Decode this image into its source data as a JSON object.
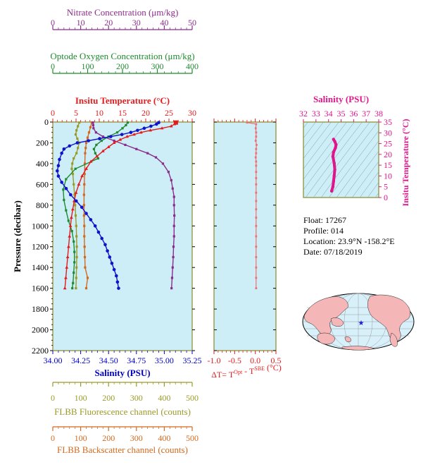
{
  "colors": {
    "nitrate": "#8b2c8b",
    "oxygen": "#1f8a2f",
    "temperature": "#e41a1c",
    "salinity_axis": "#0000cc",
    "salinity_line": "#1111cc",
    "fluorescence": "#9a9a2a",
    "backscatter": "#d2691e",
    "ts_magenta": "#e0148c",
    "dt_axis": "#e41a1c",
    "dt_line": "#f07070",
    "panel_bg": "#cdeef7",
    "frame": "#8a8a2a"
  },
  "info": {
    "float": "Float:  17267",
    "profile": "Profile:  014",
    "location": "Location:  23.9°N  -158.2°E",
    "date": "Date:  07/18/2019"
  },
  "chart_data": [
    {
      "type": "line",
      "panel": "main-profile",
      "ylabel": "Pressure (decibar)",
      "ylim": [
        2200,
        0
      ],
      "yticks": [
        "0",
        "200",
        "400",
        "600",
        "800",
        "1000",
        "1200",
        "1400",
        "1600",
        "1800",
        "2000",
        "2200"
      ],
      "axes": {
        "nitrate": {
          "label": "Nitrate Concentration (μm/kg)",
          "range": [
            0,
            50
          ],
          "ticks": [
            "0",
            "10",
            "20",
            "30",
            "40",
            "50"
          ]
        },
        "oxygen": {
          "label": "Optode Oxygen Concentration (μm/kg)",
          "range": [
            0,
            400
          ],
          "ticks": [
            "0",
            "100",
            "200",
            "300",
            "400"
          ]
        },
        "temperature": {
          "label": "Insitu Temperature (°C)",
          "range": [
            0,
            30
          ],
          "ticks": [
            "0",
            "5",
            "10",
            "15",
            "20",
            "25",
            "30"
          ]
        },
        "salinity": {
          "label": "Salinity (PSU)",
          "range": [
            34.0,
            35.25
          ],
          "ticks": [
            "34.00",
            "34.25",
            "34.50",
            "34.75",
            "35.00",
            "35.25"
          ]
        },
        "fluorescence": {
          "label": "FLBB Fluorescence channel (counts)",
          "range": [
            0,
            500
          ],
          "ticks": [
            "0",
            "100",
            "200",
            "300",
            "400",
            "500"
          ]
        },
        "backscatter": {
          "label": "FLBB Backscatter channel (counts)",
          "range": [
            0,
            500
          ],
          "ticks": [
            "0",
            "100",
            "200",
            "300",
            "400",
            "500"
          ]
        }
      },
      "series": [
        {
          "key": "nitrate",
          "axis": "nitrate",
          "marker": "square",
          "points": [
            [
              14.4,
              5
            ],
            [
              14.5,
              30
            ],
            [
              14.6,
              60
            ],
            [
              15.5,
              100
            ],
            [
              18,
              140
            ],
            [
              22,
              180
            ],
            [
              26,
              220
            ],
            [
              30,
              260
            ],
            [
              34,
              300
            ],
            [
              37,
              340
            ],
            [
              39.5,
              400
            ],
            [
              41.5,
              480
            ],
            [
              42.5,
              560
            ],
            [
              43,
              640
            ],
            [
              43.5,
              720
            ],
            [
              43.5,
              800
            ],
            [
              43.6,
              900
            ],
            [
              43.5,
              1000
            ],
            [
              43.5,
              1100
            ],
            [
              43.3,
              1200
            ],
            [
              43.2,
              1300
            ],
            [
              43,
              1400
            ],
            [
              42.8,
              1500
            ],
            [
              42.6,
              1600
            ]
          ]
        },
        {
          "key": "oxygen",
          "axis": "oxygen",
          "marker": "square",
          "points": [
            [
              215,
              5
            ],
            [
              210,
              30
            ],
            [
              200,
              60
            ],
            [
              185,
              100
            ],
            [
              160,
              140
            ],
            [
              140,
              180
            ],
            [
              125,
              220
            ],
            [
              118,
              260
            ],
            [
              122,
              300
            ],
            [
              130,
              350
            ],
            [
              65,
              450
            ],
            [
              38,
              550
            ],
            [
              30,
              650
            ],
            [
              32,
              750
            ],
            [
              38,
              850
            ],
            [
              45,
              950
            ],
            [
              55,
              1050
            ],
            [
              60,
              1150
            ],
            [
              62,
              1250
            ],
            [
              62,
              1350
            ],
            [
              60,
              1450
            ],
            [
              58,
              1550
            ],
            [
              56,
              1600
            ]
          ]
        },
        {
          "key": "temperature",
          "axis": "temperature",
          "marker": "triangle",
          "points": [
            [
              26.5,
              5
            ],
            [
              26.2,
              20
            ],
            [
              25.5,
              40
            ],
            [
              23.5,
              60
            ],
            [
              21,
              80
            ],
            [
              19,
              100
            ],
            [
              17.5,
              120
            ],
            [
              16,
              140
            ],
            [
              14.5,
              170
            ],
            [
              13.2,
              200
            ],
            [
              12,
              240
            ],
            [
              10.8,
              280
            ],
            [
              9.5,
              330
            ],
            [
              8.2,
              380
            ],
            [
              7.2,
              450
            ],
            [
              6.3,
              520
            ],
            [
              5.6,
              600
            ],
            [
              5,
              680
            ],
            [
              4.6,
              760
            ],
            [
              4.3,
              840
            ],
            [
              4,
              920
            ],
            [
              3.8,
              1000
            ],
            [
              3.6,
              1100
            ],
            [
              3.4,
              1200
            ],
            [
              3.2,
              1300
            ],
            [
              3,
              1400
            ],
            [
              2.8,
              1500
            ],
            [
              2.6,
              1600
            ]
          ]
        },
        {
          "key": "salinity",
          "axis": "salinity",
          "marker": "circle",
          "points": [
            [
              34.95,
              5
            ],
            [
              34.93,
              20
            ],
            [
              34.88,
              40
            ],
            [
              34.82,
              60
            ],
            [
              34.76,
              80
            ],
            [
              34.7,
              100
            ],
            [
              34.62,
              120
            ],
            [
              34.52,
              140
            ],
            [
              34.42,
              160
            ],
            [
              34.32,
              180
            ],
            [
              34.22,
              200
            ],
            [
              34.15,
              230
            ],
            [
              34.1,
              260
            ],
            [
              34.08,
              300
            ],
            [
              34.06,
              360
            ],
            [
              34.05,
              420
            ],
            [
              34.04,
              470
            ],
            [
              34.05,
              520
            ],
            [
              34.08,
              580
            ],
            [
              34.12,
              640
            ],
            [
              34.16,
              700
            ],
            [
              34.21,
              760
            ],
            [
              34.26,
              820
            ],
            [
              34.3,
              880
            ],
            [
              34.34,
              940
            ],
            [
              34.38,
              1000
            ],
            [
              34.41,
              1060
            ],
            [
              34.44,
              1120
            ],
            [
              34.47,
              1180
            ],
            [
              34.49,
              1240
            ],
            [
              34.51,
              1300
            ],
            [
              34.53,
              1360
            ],
            [
              34.55,
              1420
            ],
            [
              34.57,
              1480
            ],
            [
              34.58,
              1540
            ],
            [
              34.59,
              1600
            ]
          ]
        },
        {
          "key": "fluorescence",
          "axis": "fluorescence",
          "marker": "square",
          "points": [
            [
              95,
              5
            ],
            [
              90,
              40
            ],
            [
              85,
              80
            ],
            [
              82,
              120
            ],
            [
              88,
              160
            ],
            [
              95,
              200
            ],
            [
              90,
              250
            ],
            [
              85,
              300
            ],
            [
              75,
              350
            ],
            [
              70,
              400
            ],
            [
              68,
              450
            ],
            [
              72,
              500
            ],
            [
              75,
              600
            ],
            [
              78,
              700
            ],
            [
              80,
              800
            ],
            [
              82,
              900
            ],
            [
              84,
              1000
            ],
            [
              85,
              1100
            ],
            [
              86,
              1200
            ],
            [
              86,
              1300
            ],
            [
              85,
              1400
            ],
            [
              84,
              1500
            ],
            [
              83,
              1600
            ]
          ]
        },
        {
          "key": "backscatter",
          "axis": "backscatter",
          "marker": "square",
          "points": [
            [
              140,
              5
            ],
            [
              135,
              50
            ],
            [
              130,
              100
            ],
            [
              125,
              150
            ],
            [
              120,
              200
            ],
            [
              118,
              250
            ],
            [
              116,
              300
            ],
            [
              115,
              400
            ],
            [
              114,
              500
            ],
            [
              113,
              600
            ],
            [
              112,
              700
            ],
            [
              112,
              800
            ],
            [
              112,
              900
            ],
            [
              113,
              1000
            ],
            [
              113,
              1100
            ],
            [
              114,
              1200
            ],
            [
              115,
              1300
            ],
            [
              116,
              1400
            ],
            [
              125,
              1500
            ],
            [
              120,
              1600
            ]
          ]
        }
      ]
    },
    {
      "type": "line",
      "panel": "delta-t",
      "xlabel": "ΔT= T",
      "xlabel_sup1": "Opt",
      "xlabel_mid": " - T",
      "xlabel_sup2": "SBE",
      "xlabel_end": " (°C)",
      "xlim": [
        -1.0,
        0.5
      ],
      "xticks": [
        "-1.0",
        "-0.5",
        "0.0",
        "0.5"
      ],
      "series": [
        {
          "name": "ΔT",
          "points": [
            [
              -0.2,
              5
            ],
            [
              0.02,
              20
            ],
            [
              0.01,
              60
            ],
            [
              0.02,
              100
            ],
            [
              0.02,
              140
            ],
            [
              0.01,
              180
            ],
            [
              0.03,
              220
            ],
            [
              0.02,
              260
            ],
            [
              0.02,
              300
            ],
            [
              0.01,
              340
            ],
            [
              0.02,
              380
            ],
            [
              0.02,
              420
            ],
            [
              0.02,
              480
            ],
            [
              0.02,
              540
            ],
            [
              0.02,
              600
            ],
            [
              0.02,
              680
            ],
            [
              0.02,
              760
            ],
            [
              0.02,
              840
            ],
            [
              0.02,
              920
            ],
            [
              0.02,
              1000
            ],
            [
              0.02,
              1100
            ],
            [
              0.02,
              1200
            ],
            [
              0.02,
              1300
            ],
            [
              0.02,
              1400
            ],
            [
              0.02,
              1500
            ],
            [
              0.02,
              1600
            ]
          ]
        }
      ]
    },
    {
      "type": "scatter",
      "panel": "ts-diagram",
      "xlabel": "Salinity (PSU)",
      "ylabel": "Insitu Temperature (°C)",
      "xlim": [
        32,
        38
      ],
      "ylim": [
        0,
        35
      ],
      "xticks": [
        "32",
        "33",
        "34",
        "35",
        "36",
        "37",
        "38"
      ],
      "yticks": [
        "0",
        "5",
        "10",
        "15",
        "20",
        "25",
        "30",
        "35"
      ],
      "series": [
        {
          "name": "T-S",
          "points": [
            [
              34.25,
              3.0
            ],
            [
              34.35,
              5
            ],
            [
              34.4,
              7.5
            ],
            [
              34.45,
              10
            ],
            [
              34.5,
              13
            ],
            [
              34.45,
              16
            ],
            [
              34.35,
              19
            ],
            [
              34.4,
              21
            ],
            [
              34.55,
              23
            ],
            [
              34.6,
              24.5
            ],
            [
              34.5,
              26
            ],
            [
              34.4,
              27
            ]
          ]
        }
      ]
    }
  ]
}
